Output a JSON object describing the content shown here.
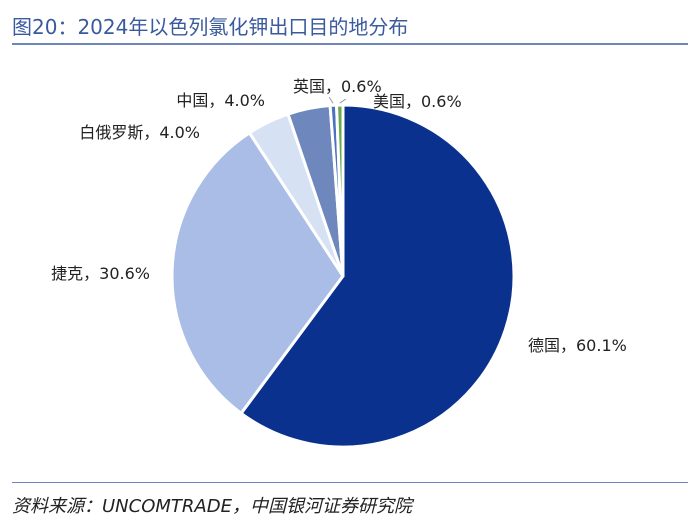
{
  "header": {
    "title": "图20：2024年以色列氯化钾出口目的地分布"
  },
  "footer": {
    "source": "资料来源：UNCOMTRADE，中国银河证券研究院"
  },
  "chart_data": {
    "type": "pie",
    "title": "图20：2024年以色列氯化钾出口目的地分布",
    "categories": [
      "德国",
      "捷克",
      "白俄罗斯",
      "中国",
      "英国",
      "美国"
    ],
    "values": [
      60.1,
      30.6,
      4.0,
      4.0,
      0.6,
      0.6
    ],
    "unit": "%",
    "labels": [
      "德国，60.1%",
      "捷克，30.6%",
      "白俄罗斯，4.0%",
      "中国，4.0%",
      "英国，0.6%",
      "美国，0.6%"
    ],
    "colors": [
      "#0b318f",
      "#a9bde6",
      "#d7e1f4",
      "#6e87bd",
      "#4e72c0",
      "#6aa84f"
    ],
    "legend": "none",
    "start_angle": "12 o'clock, clockwise"
  }
}
